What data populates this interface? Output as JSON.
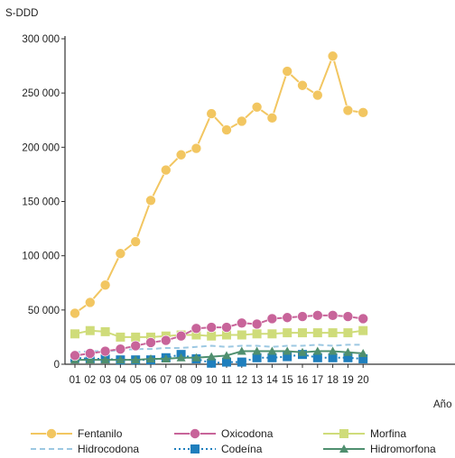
{
  "chart_data": {
    "type": "line",
    "ylabel": "S-DDD",
    "xlabel": "Año",
    "ylim": [
      0,
      300000
    ],
    "yticks": [
      0,
      50000,
      100000,
      150000,
      200000,
      250000,
      300000
    ],
    "ytick_labels": [
      "0",
      "50 000",
      "100 000",
      "150 000",
      "200 000",
      "250 000",
      "300 000"
    ],
    "categories": [
      "01",
      "02",
      "03",
      "04",
      "05",
      "06",
      "07",
      "08",
      "09",
      "10",
      "11",
      "12",
      "13",
      "14",
      "15",
      "16",
      "17",
      "18",
      "19",
      "20"
    ],
    "grid": false,
    "legend_position": "bottom",
    "series": [
      {
        "name": "Fentanilo",
        "color": "#f2c661",
        "marker": "circle",
        "dash": "solid",
        "values": [
          47000,
          57000,
          73000,
          102000,
          113000,
          151000,
          179000,
          193000,
          199000,
          231000,
          216000,
          224000,
          237000,
          227000,
          270000,
          257000,
          248000,
          284000,
          234000,
          232000
        ]
      },
      {
        "name": "Oxicodona",
        "color": "#c8649a",
        "marker": "circle",
        "dash": "solid",
        "values": [
          8000,
          10000,
          12000,
          14000,
          17000,
          20000,
          22000,
          26000,
          33000,
          34000,
          34000,
          38000,
          37000,
          42000,
          43000,
          44000,
          45000,
          45000,
          44000,
          42000
        ]
      },
      {
        "name": "Morfina",
        "color": "#cfdc7a",
        "marker": "square",
        "dash": "solid",
        "values": [
          28000,
          31000,
          30000,
          25000,
          25000,
          25000,
          26000,
          27000,
          27000,
          26000,
          27000,
          27000,
          28000,
          28000,
          29000,
          29000,
          29000,
          29000,
          29000,
          31000
        ]
      },
      {
        "name": "Hidrocodona",
        "color": "#9cc8e2",
        "marker": "none",
        "dash": "dashed",
        "values": [
          11000,
          12000,
          12000,
          13000,
          14000,
          14000,
          15000,
          15000,
          16000,
          17000,
          16000,
          17000,
          17000,
          16000,
          17000,
          17000,
          18000,
          17000,
          18000,
          18000
        ]
      },
      {
        "name": "Codeína",
        "color": "#1f7fbd",
        "marker": "square",
        "dash": "dotted",
        "values": [
          6000,
          5000,
          5000,
          4000,
          4000,
          4000,
          6000,
          9000,
          5000,
          1000,
          2000,
          2000,
          6000,
          6000,
          7000,
          9000,
          6000,
          6000,
          6000,
          5000
        ]
      },
      {
        "name": "Hidromorfona",
        "color": "#4f8f6f",
        "marker": "triangle",
        "dash": "solid",
        "values": [
          4000,
          4000,
          4000,
          4000,
          4000,
          5000,
          5000,
          6000,
          6000,
          7000,
          8000,
          12000,
          12000,
          12000,
          12000,
          11000,
          12000,
          12000,
          11000,
          10000
        ]
      }
    ]
  }
}
